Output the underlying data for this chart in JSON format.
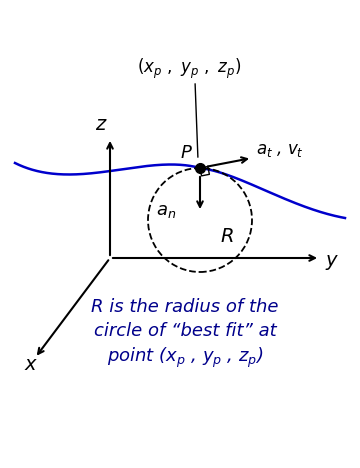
{
  "bg_color": "#ffffff",
  "curve_color": "#0000cc",
  "axis_color": "#000000",
  "circle_color": "#000000",
  "point_color": "#000000",
  "arrow_color": "#000000",
  "figsize": [
    3.6,
    4.68
  ],
  "dpi": 100,
  "annotation_lines": [
    "R is the radius of the",
    "circle of “best fit” at",
    "point ($x_p$ , $y_p$ , $z_p$)"
  ],
  "annotation_fontsize": 13
}
